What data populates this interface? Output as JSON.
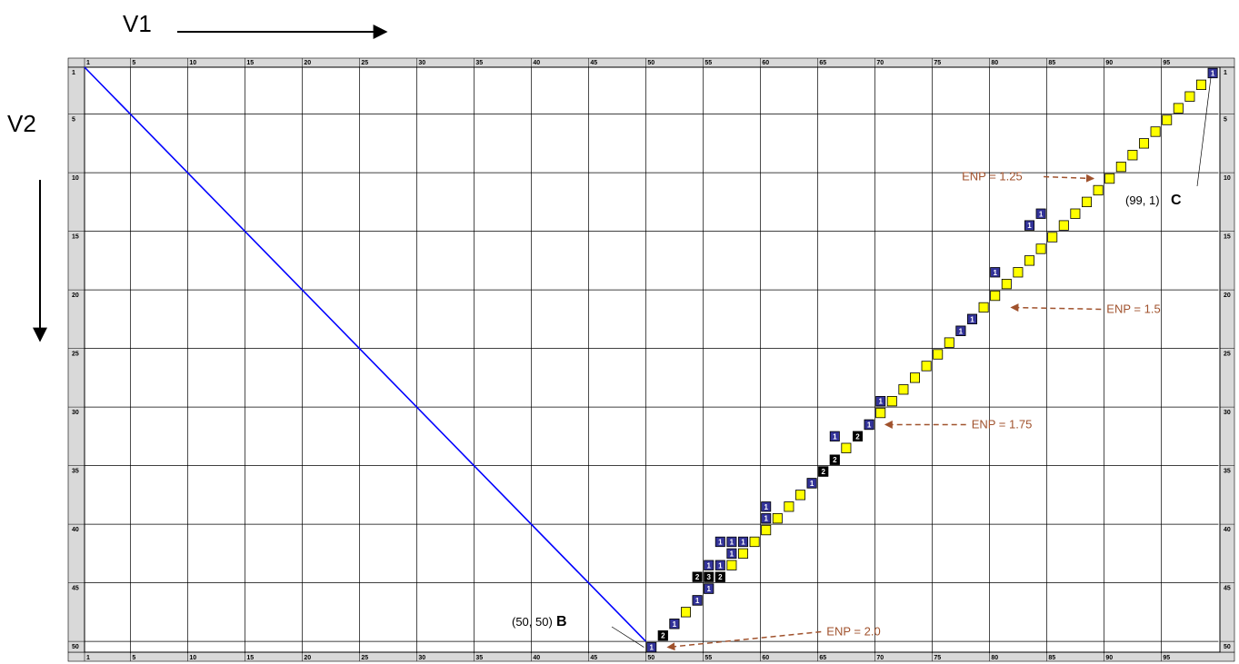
{
  "chart_data": {
    "type": "heatmap",
    "x_axis_label": "V1",
    "y_axis_label": "V2",
    "x_range": [
      1,
      99
    ],
    "y_range": [
      1,
      50
    ],
    "x_ticks": [
      1,
      5,
      10,
      15,
      20,
      25,
      30,
      35,
      40,
      45,
      50,
      55,
      60,
      65,
      70,
      75,
      80,
      85,
      90,
      95
    ],
    "y_ticks": [
      1,
      5,
      10,
      15,
      20,
      25,
      30,
      35,
      40,
      45,
      50
    ],
    "grid": true,
    "colors": {
      "path": "#ffff00",
      "count_1": "#333399",
      "count_multi": "#000000",
      "diagonal": "#0000ff",
      "annotation": "#a0522d"
    },
    "diagonal_line": {
      "from": [
        1,
        1
      ],
      "to": [
        50,
        50
      ]
    },
    "path_cells": [
      [
        51,
        49
      ],
      [
        52,
        48
      ],
      [
        53,
        47
      ],
      [
        54,
        46
      ],
      [
        55,
        45
      ],
      [
        56,
        44
      ],
      [
        57,
        43
      ],
      [
        58,
        42
      ],
      [
        59,
        41
      ],
      [
        60,
        40
      ],
      [
        61,
        39
      ],
      [
        62,
        38
      ],
      [
        63,
        37
      ],
      [
        64,
        36
      ],
      [
        65,
        35
      ],
      [
        66,
        34
      ],
      [
        67,
        33
      ],
      [
        68,
        32
      ],
      [
        69,
        31
      ],
      [
        70,
        30
      ],
      [
        71,
        29
      ],
      [
        72,
        28
      ],
      [
        73,
        27
      ],
      [
        74,
        26
      ],
      [
        75,
        25
      ],
      [
        76,
        24
      ],
      [
        77,
        23
      ],
      [
        78,
        22
      ],
      [
        79,
        21
      ],
      [
        80,
        20
      ],
      [
        81,
        19
      ],
      [
        82,
        18
      ],
      [
        83,
        17
      ],
      [
        84,
        16
      ],
      [
        85,
        15
      ],
      [
        86,
        14
      ],
      [
        87,
        13
      ],
      [
        88,
        12
      ],
      [
        89,
        11
      ],
      [
        90,
        10
      ],
      [
        91,
        9
      ],
      [
        92,
        8
      ],
      [
        93,
        7
      ],
      [
        94,
        6
      ],
      [
        95,
        5
      ],
      [
        96,
        4
      ],
      [
        97,
        3
      ],
      [
        98,
        2
      ]
    ],
    "count_cells": [
      {
        "x": 50,
        "y": 50,
        "v": "1"
      },
      {
        "x": 51,
        "y": 49,
        "v": "2"
      },
      {
        "x": 52,
        "y": 48,
        "v": "1"
      },
      {
        "x": 54,
        "y": 46,
        "v": "1"
      },
      {
        "x": 55,
        "y": 45,
        "v": "1"
      },
      {
        "x": 54,
        "y": 44,
        "v": "2"
      },
      {
        "x": 55,
        "y": 44,
        "v": "3"
      },
      {
        "x": 56,
        "y": 44,
        "v": "2"
      },
      {
        "x": 55,
        "y": 43,
        "v": "1"
      },
      {
        "x": 56,
        "y": 43,
        "v": "1"
      },
      {
        "x": 57,
        "y": 42,
        "v": "1"
      },
      {
        "x": 56,
        "y": 41,
        "v": "1"
      },
      {
        "x": 57,
        "y": 41,
        "v": "1"
      },
      {
        "x": 58,
        "y": 41,
        "v": "1"
      },
      {
        "x": 60,
        "y": 39,
        "v": "1"
      },
      {
        "x": 60,
        "y": 38,
        "v": "1"
      },
      {
        "x": 64,
        "y": 36,
        "v": "1"
      },
      {
        "x": 65,
        "y": 35,
        "v": "2"
      },
      {
        "x": 66,
        "y": 34,
        "v": "2"
      },
      {
        "x": 66,
        "y": 32,
        "v": "1"
      },
      {
        "x": 68,
        "y": 32,
        "v": "2"
      },
      {
        "x": 69,
        "y": 31,
        "v": "1"
      },
      {
        "x": 70,
        "y": 29,
        "v": "1"
      },
      {
        "x": 77,
        "y": 23,
        "v": "1"
      },
      {
        "x": 78,
        "y": 22,
        "v": "1"
      },
      {
        "x": 80,
        "y": 18,
        "v": "1"
      },
      {
        "x": 83,
        "y": 14,
        "v": "1"
      },
      {
        "x": 84,
        "y": 13,
        "v": "1"
      },
      {
        "x": 99,
        "y": 1,
        "v": "1"
      }
    ],
    "annotations": [
      {
        "text": "ENP = 1.25",
        "target": [
          89,
          10
        ]
      },
      {
        "text": "ENP = 1.5",
        "target": [
          81,
          21
        ]
      },
      {
        "text": "ENP = 1.75",
        "target": [
          70,
          31
        ]
      },
      {
        "text": "ENP = 2.0",
        "target": [
          51,
          50
        ]
      }
    ],
    "points": [
      {
        "coord": "(50, 50)",
        "label": "B"
      },
      {
        "coord": "(99, 1)",
        "label": "C"
      }
    ]
  }
}
